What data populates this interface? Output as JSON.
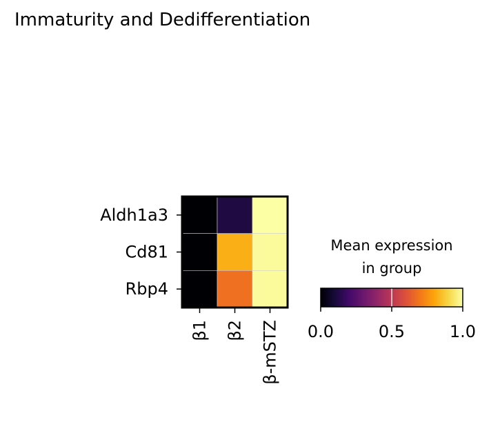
{
  "chart_data": {
    "type": "heatmap",
    "title": "Immaturity and Dedifferentiation",
    "rows": [
      "Aldh1a3",
      "Cd81",
      "Rbp4"
    ],
    "columns": [
      "β1",
      "β2",
      "β-mSTZ"
    ],
    "values": [
      [
        0.0,
        0.12,
        1.0
      ],
      [
        0.0,
        0.82,
        0.99
      ],
      [
        0.0,
        0.68,
        0.99
      ]
    ],
    "colormap": "inferno",
    "colorbar": {
      "title_lines": [
        "Mean expression",
        "in group"
      ],
      "range": [
        0.0,
        1.0
      ],
      "ticks": [
        0.0,
        0.5,
        1.0
      ],
      "tick_labels": [
        "0.0",
        "0.5",
        "1.0"
      ]
    }
  }
}
